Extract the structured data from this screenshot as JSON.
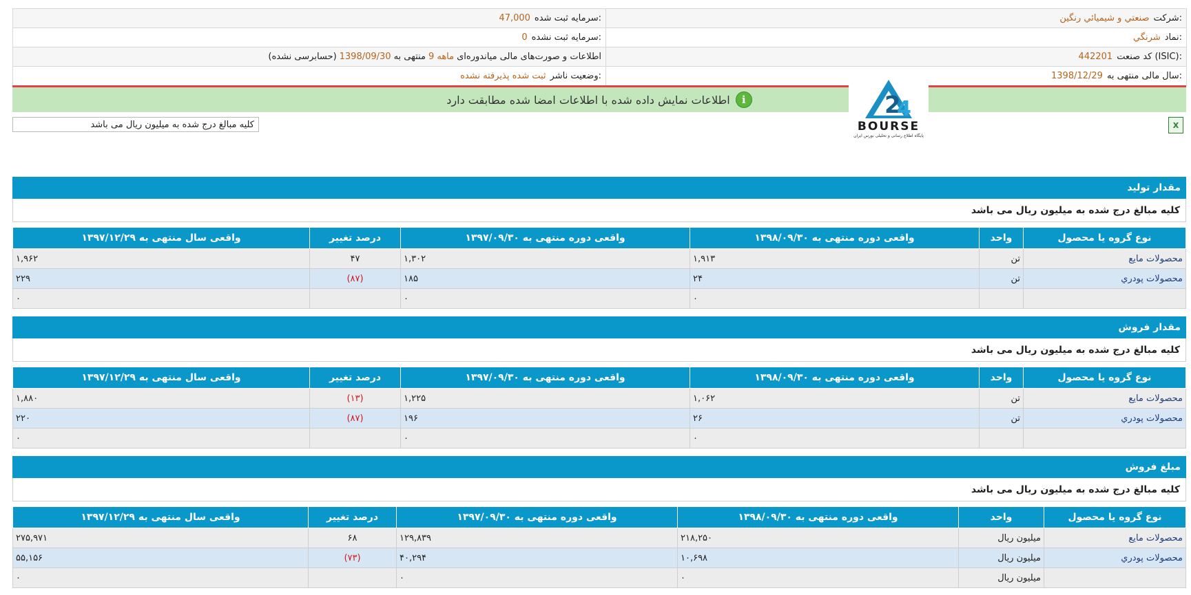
{
  "header": {
    "rows": [
      {
        "right_label": "شرکت:",
        "right_value": "صنعتي و شيميائي رنگين",
        "left_label": "سرمایه ثبت شده:",
        "left_value": "47,000"
      },
      {
        "right_label": "نماد:",
        "right_value": "شرنگي",
        "left_label": "سرمایه ثبت نشده:",
        "left_value": "0"
      },
      {
        "right_label": "کد صنعت (ISIC):",
        "right_value": "442201",
        "left_label": "اطلاعات و صورت‌های مالی میاندوره‌ای",
        "left_value": "9 ماهه",
        "left_mid": "منتهی به",
        "left_date": "1398/09/30",
        "left_tail": "(حسابرسی نشده)"
      },
      {
        "right_label": "سال مالی منتهی به:",
        "right_value": "1398/12/29",
        "left_label": "وضعیت ناشر:",
        "left_value": "ثبت شده پذیرفته نشده"
      }
    ]
  },
  "banner": {
    "text": "اطلاعات نمایش داده شده با اطلاعات امضا شده مطابقت دارد",
    "icon": "info-icon",
    "icon_glyph": "i",
    "color": "#c3e6bd"
  },
  "logo": {
    "word": "BOURSE",
    "tagline": "پایگاه اطلاع رسانی و تحلیلی بورس ایران"
  },
  "note_box": "کلیه مبالغ درج شده به میلیون ریال می باشد",
  "excel_icon": {
    "name": "excel-icon",
    "glyph": "X"
  },
  "columns": [
    "نوع گروه یا محصول",
    "واحد",
    "واقعی دوره منتهی به ۱۳۹۸/۰۹/۳۰",
    "واقعی دوره منتهی به ۱۳۹۷/۰۹/۳۰",
    "درصد تغییر",
    "واقعی سال منتهی به ۱۳۹۷/۱۲/۲۹"
  ],
  "sections": [
    {
      "title": "مقدار تولید",
      "note": "کلیه مبالغ درج شده به میلیون ریال می باشد",
      "rows": [
        {
          "name": "محصولات مايع",
          "unit": "تن",
          "cur": "۱,۹۱۳",
          "prev": "۱,۳۰۲",
          "pct": "۴۷",
          "year": "۱,۹۶۲"
        },
        {
          "name": "محصولات پودري",
          "unit": "تن",
          "cur": "۲۴",
          "prev": "۱۸۵",
          "pct": "(۸۷)",
          "year": "۲۲۹"
        },
        {
          "name": "",
          "unit": "",
          "cur": "۰",
          "prev": "۰",
          "pct": "",
          "year": "۰"
        }
      ]
    },
    {
      "title": "مقدار فروش",
      "note": "کلیه مبالغ درج شده به میلیون ریال می باشد",
      "rows": [
        {
          "name": "محصولات مايع",
          "unit": "تن",
          "cur": "۱,۰۶۲",
          "prev": "۱,۲۲۵",
          "pct": "(۱۳)",
          "year": "۱,۸۸۰"
        },
        {
          "name": "محصولات پودري",
          "unit": "تن",
          "cur": "۲۶",
          "prev": "۱۹۶",
          "pct": "(۸۷)",
          "year": "۲۲۰"
        },
        {
          "name": "",
          "unit": "",
          "cur": "۰",
          "prev": "۰",
          "pct": "",
          "year": "۰"
        }
      ]
    },
    {
      "title": "مبلغ فروش",
      "note": "کلیه مبالغ درج شده به میلیون ریال می باشد",
      "rows": [
        {
          "name": "محصولات مايع",
          "unit": "میلیون ریال",
          "cur": "۲۱۸,۲۵۰",
          "prev": "۱۲۹,۸۳۹",
          "pct": "۶۸",
          "year": "۲۷۵,۹۷۱"
        },
        {
          "name": "محصولات پودري",
          "unit": "میلیون ریال",
          "cur": "۱۰,۶۹۸",
          "prev": "۴۰,۲۹۴",
          "pct": "(۷۳)",
          "year": "۵۵,۱۵۶"
        },
        {
          "name": "",
          "unit": "میلیون ریال",
          "cur": "۰",
          "prev": "۰",
          "pct": "",
          "year": "۰"
        }
      ]
    }
  ]
}
